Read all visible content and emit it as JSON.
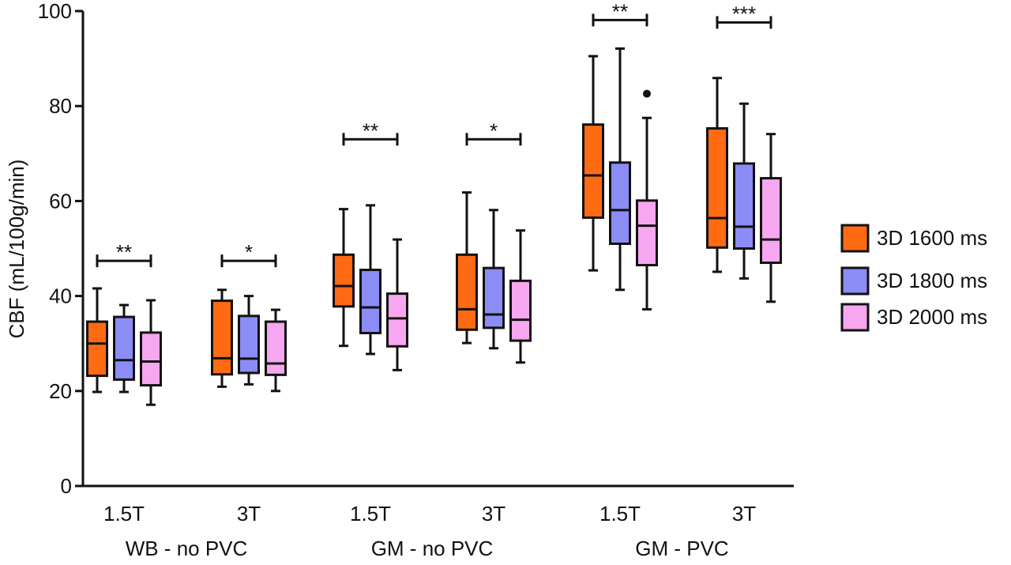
{
  "chart_data": {
    "type": "boxplot",
    "ylabel": "CBF (mL/100g/min)",
    "ylim": [
      0,
      100
    ],
    "yticks": [
      0,
      20,
      40,
      60,
      80,
      100
    ],
    "groups": [
      {
        "label": "WB - no PVC",
        "subgroups": [
          "1.5T",
          "3T"
        ]
      },
      {
        "label": "GM - no PVC",
        "subgroups": [
          "1.5T",
          "3T"
        ]
      },
      {
        "label": "GM - PVC",
        "subgroups": [
          "1.5T",
          "3T"
        ]
      }
    ],
    "series": [
      {
        "name": "3D 1600 ms",
        "color": "#ff6a13"
      },
      {
        "name": "3D 1800 ms",
        "color": "#8b8cf5"
      },
      {
        "name": "3D 2000 ms",
        "color": "#f7a6f0"
      }
    ],
    "boxes": [
      [
        {
          "min": 19.8,
          "q1": 23.2,
          "median": 30.0,
          "q3": 34.6,
          "max": 41.6
        },
        {
          "min": 19.8,
          "q1": 22.4,
          "median": 26.5,
          "q3": 35.6,
          "max": 38.1
        },
        {
          "min": 17.1,
          "q1": 21.2,
          "median": 26.2,
          "q3": 32.3,
          "max": 39.1
        }
      ],
      [
        {
          "min": 20.9,
          "q1": 23.5,
          "median": 26.9,
          "q3": 39.0,
          "max": 41.3
        },
        {
          "min": 21.4,
          "q1": 23.8,
          "median": 26.8,
          "q3": 35.8,
          "max": 40.0
        },
        {
          "min": 20.0,
          "q1": 23.4,
          "median": 25.8,
          "q3": 34.6,
          "max": 37.1
        }
      ],
      [
        {
          "min": 29.5,
          "q1": 37.8,
          "median": 42.1,
          "q3": 48.7,
          "max": 58.3
        },
        {
          "min": 27.8,
          "q1": 32.2,
          "median": 37.6,
          "q3": 45.5,
          "max": 59.1
        },
        {
          "min": 24.4,
          "q1": 29.4,
          "median": 35.3,
          "q3": 40.5,
          "max": 51.9
        }
      ],
      [
        {
          "min": 30.1,
          "q1": 32.9,
          "median": 37.2,
          "q3": 48.7,
          "max": 61.8
        },
        {
          "min": 29.0,
          "q1": 33.3,
          "median": 36.1,
          "q3": 45.9,
          "max": 58.1
        },
        {
          "min": 26.0,
          "q1": 30.6,
          "median": 35.0,
          "q3": 43.2,
          "max": 53.8
        }
      ],
      [
        {
          "min": 45.4,
          "q1": 56.5,
          "median": 65.4,
          "q3": 76.1,
          "max": 90.5
        },
        {
          "min": 41.3,
          "q1": 51.0,
          "median": 58.1,
          "q3": 68.1,
          "max": 92.1
        },
        {
          "min": 37.2,
          "q1": 46.5,
          "median": 54.8,
          "q3": 60.1,
          "max": 77.5,
          "outliers": [
            82.6
          ]
        }
      ],
      [
        {
          "min": 45.1,
          "q1": 50.2,
          "median": 56.4,
          "q3": 75.3,
          "max": 85.9
        },
        {
          "min": 43.7,
          "q1": 50.0,
          "median": 54.6,
          "q3": 67.9,
          "max": 80.5
        },
        {
          "min": 38.8,
          "q1": 47.0,
          "median": 51.9,
          "q3": 64.8,
          "max": 74.1
        }
      ]
    ],
    "significance": [
      {
        "label": "**",
        "y": 47.4
      },
      {
        "label": "*",
        "y": 47.4
      },
      {
        "label": "**",
        "y": 73.0
      },
      {
        "label": "*",
        "y": 73.0
      },
      {
        "label": "**",
        "y": 98.1
      },
      {
        "label": "***",
        "y": 97.6
      }
    ],
    "legend_position": "right",
    "grid": false
  }
}
